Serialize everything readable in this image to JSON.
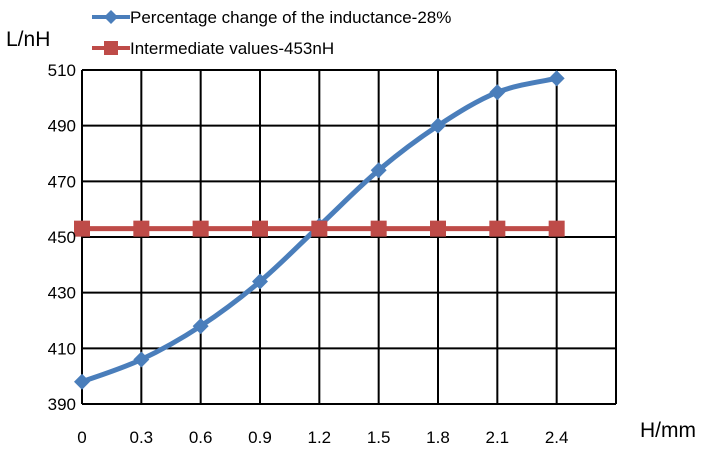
{
  "chart_data": {
    "type": "line",
    "xlabel": "H/mm",
    "ylabel": "L/nH",
    "x": [
      0,
      0.3,
      0.6,
      0.9,
      1.2,
      1.5,
      1.8,
      2.1,
      2.4
    ],
    "x_tick_labels": [
      "0",
      "0.3",
      "0.6",
      "0.9",
      "1.2",
      "1.5",
      "1.8",
      "2.1",
      "2.4"
    ],
    "y_tick_labels": [
      "390",
      "410",
      "430",
      "450",
      "470",
      "490",
      "510"
    ],
    "ylim": [
      390,
      510
    ],
    "grid": true,
    "legend_position": "top",
    "series": [
      {
        "name": "Percentage change of the inductance-28%",
        "color": "#4a7ebb",
        "marker": "diamond",
        "values": [
          398,
          406,
          418,
          434,
          454,
          474,
          490,
          502,
          507
        ]
      },
      {
        "name": "Intermediate values-453nH",
        "color": "#be4b48",
        "marker": "square",
        "values": [
          453,
          453,
          453,
          453,
          453,
          453,
          453,
          453,
          453
        ]
      }
    ]
  }
}
